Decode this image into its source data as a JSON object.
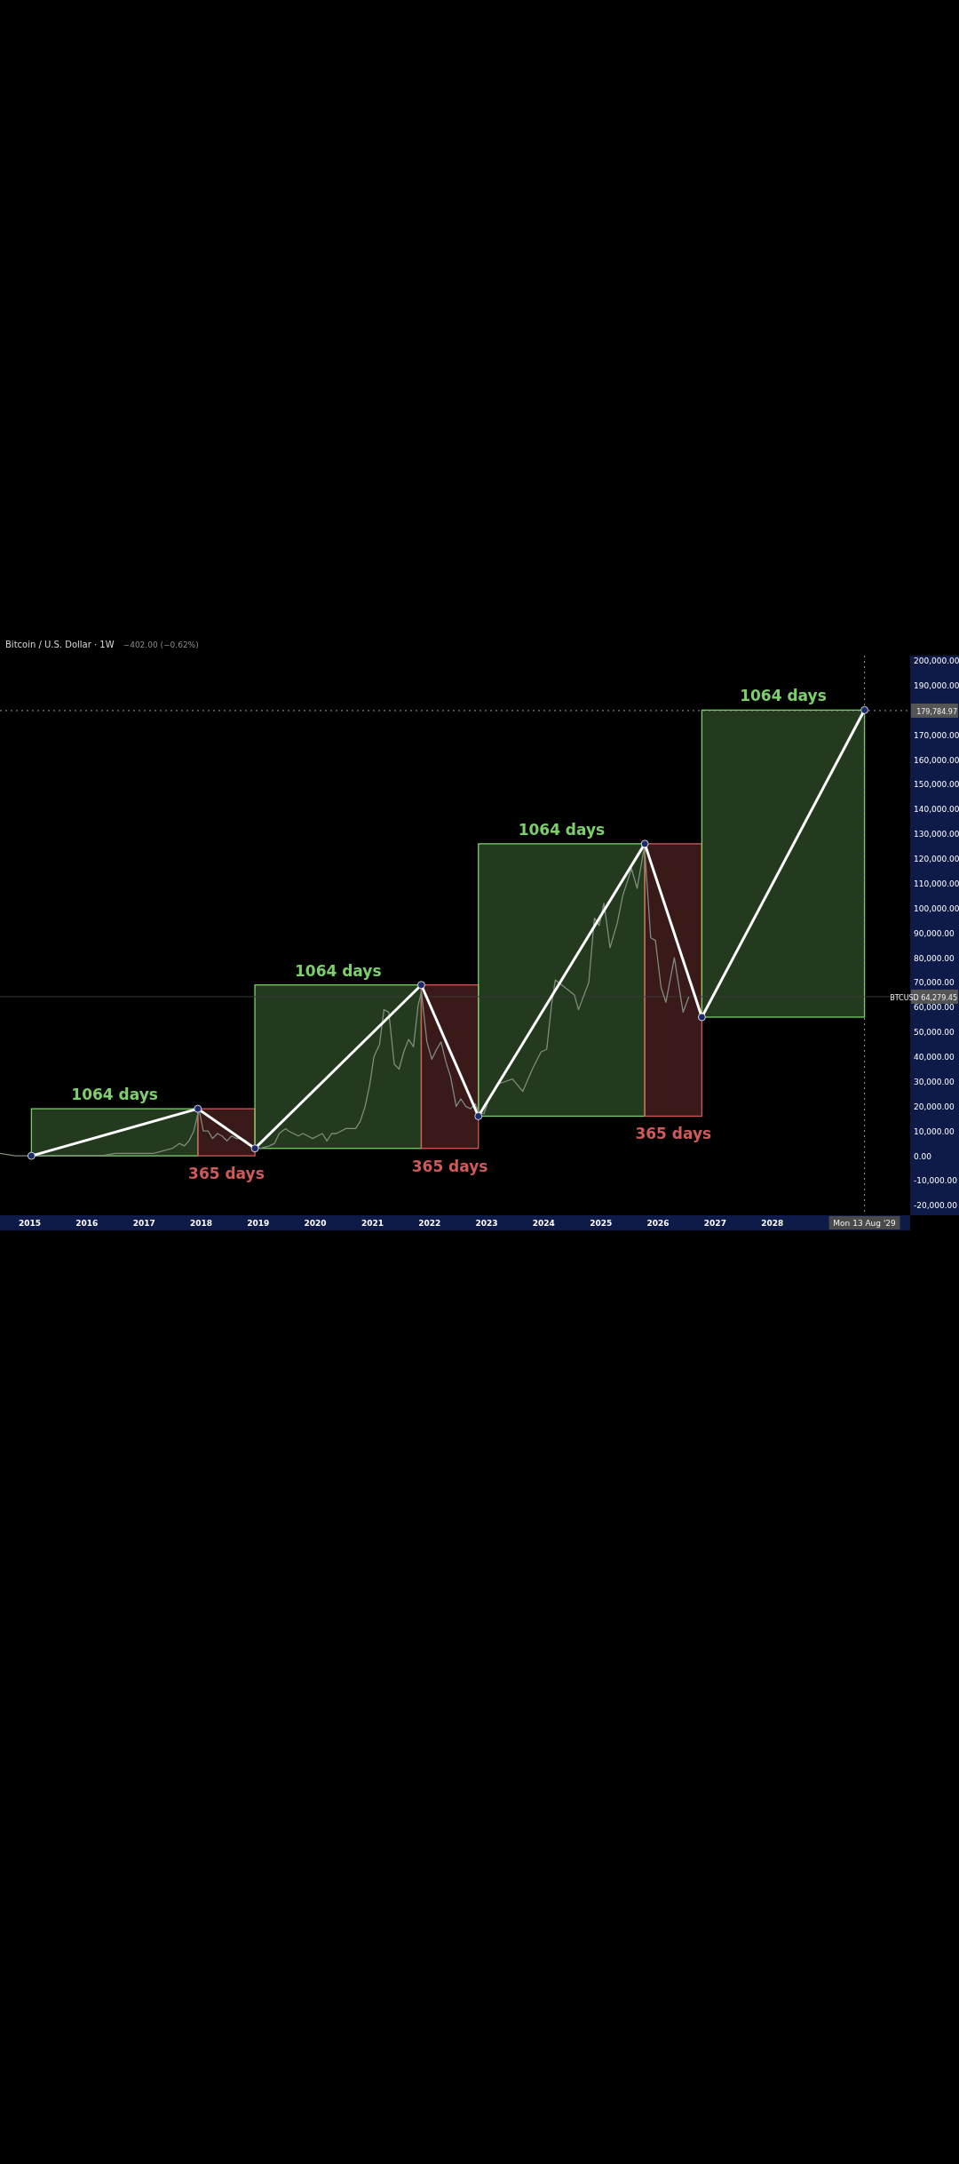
{
  "chart_data": {
    "type": "line",
    "title": "Bitcoin / U.S. Dollar · 1W",
    "subtitle": "−402.00 (−0.62%)",
    "xlim": [
      "2014-06-25",
      "2030-06-01"
    ],
    "xticks": [
      {
        "value": "2015-01-01",
        "label": "2015"
      },
      {
        "value": "2016-01-01",
        "label": "2016"
      },
      {
        "value": "2017-01-01",
        "label": "2017"
      },
      {
        "value": "2018-01-01",
        "label": "2018"
      },
      {
        "value": "2019-01-01",
        "label": "2019"
      },
      {
        "value": "2020-01-01",
        "label": "2020"
      },
      {
        "value": "2021-01-01",
        "label": "2021"
      },
      {
        "value": "2022-01-01",
        "label": "2022"
      },
      {
        "value": "2023-01-01",
        "label": "2023"
      },
      {
        "value": "2024-01-01",
        "label": "2024"
      },
      {
        "value": "2025-01-01",
        "label": "2025"
      },
      {
        "value": "2026-01-01",
        "label": "2026"
      },
      {
        "value": "2027-01-01",
        "label": "2027"
      },
      {
        "value": "2028-01-01",
        "label": "2028"
      }
    ],
    "ylim": [
      -24000,
      202000
    ],
    "yticks": [
      {
        "value": -20000,
        "label": "-20,000.00"
      },
      {
        "value": -10000,
        "label": "-10,000.00"
      },
      {
        "value": 0,
        "label": "0.00"
      },
      {
        "value": 10000,
        "label": "10,000.00"
      },
      {
        "value": 20000,
        "label": "20,000.00"
      },
      {
        "value": 30000,
        "label": "30,000.00"
      },
      {
        "value": 40000,
        "label": "40,000.00"
      },
      {
        "value": 50000,
        "label": "50,000.00"
      },
      {
        "value": 60000,
        "label": "60,000.00"
      },
      {
        "value": 70000,
        "label": "70,000.00"
      },
      {
        "value": 80000,
        "label": "80,000.00"
      },
      {
        "value": 90000,
        "label": "90,000.00"
      },
      {
        "value": 100000,
        "label": "100,000.00"
      },
      {
        "value": 110000,
        "label": "110,000.00"
      },
      {
        "value": 120000,
        "label": "120,000.00"
      },
      {
        "value": 130000,
        "label": "130,000.00"
      },
      {
        "value": 140000,
        "label": "140,000.00"
      },
      {
        "value": 150000,
        "label": "150,000.00"
      },
      {
        "value": 160000,
        "label": "160,000.00"
      },
      {
        "value": 170000,
        "label": "170,000.00"
      },
      {
        "value": 190000,
        "label": "190,000.00"
      },
      {
        "value": 200000,
        "label": "200,000.00"
      }
    ],
    "series": [
      {
        "color": "#7f8c7c",
        "marker": "none",
        "x": [
          "2014-06-25",
          "2014-10-01",
          "2015-01-12",
          "2015-04-01",
          "2015-07-01",
          "2015-10-01",
          "2016-01-01",
          "2016-04-01",
          "2016-07-01",
          "2016-10-01",
          "2017-01-01",
          "2017-03-01",
          "2017-05-01",
          "2017-07-01",
          "2017-08-15",
          "2017-09-15",
          "2017-10-15",
          "2017-11-15",
          "2017-12-04",
          "2017-12-18",
          "2018-01-15",
          "2018-02-15",
          "2018-03-15",
          "2018-04-15",
          "2018-05-15",
          "2018-06-15",
          "2018-07-15",
          "2018-08-15",
          "2018-09-15",
          "2018-10-15",
          "2018-11-20",
          "2018-12-15",
          "2019-01-15",
          "2019-03-15",
          "2019-04-15",
          "2019-05-15",
          "2019-06-25",
          "2019-07-15",
          "2019-09-15",
          "2019-10-15",
          "2019-12-15",
          "2020-02-15",
          "2020-03-15",
          "2020-04-15",
          "2020-05-15",
          "2020-07-15",
          "2020-09-15",
          "2020-10-15",
          "2020-11-15",
          "2020-12-15",
          "2021-01-10",
          "2021-02-15",
          "2021-03-15",
          "2021-04-15",
          "2021-05-20",
          "2021-06-20",
          "2021-07-20",
          "2021-08-20",
          "2021-09-20",
          "2021-10-20",
          "2021-11-10",
          "2021-12-15",
          "2022-01-15",
          "2022-02-15",
          "2022-03-15",
          "2022-04-15",
          "2022-05-15",
          "2022-06-20",
          "2022-07-20",
          "2022-08-20",
          "2022-09-20",
          "2022-10-20",
          "2022-11-15",
          "2022-12-15",
          "2023-01-15",
          "2023-03-15",
          "2023-06-15",
          "2023-08-20",
          "2023-10-20",
          "2023-12-15",
          "2024-01-20",
          "2024-02-20",
          "2024-03-15",
          "2024-05-15",
          "2024-07-15",
          "2024-08-10",
          "2024-10-15",
          "2024-11-20",
          "2024-12-20",
          "2025-01-20",
          "2025-02-28",
          "2025-04-15",
          "2025-05-20",
          "2025-07-15",
          "2025-08-20",
          "2025-10-06",
          "2025-11-15",
          "2025-12-15",
          "2026-01-20",
          "2026-02-20",
          "2026-04-15",
          "2026-06-10",
          "2026-07-15"
        ],
        "values": [
          1000,
          0,
          0,
          0,
          0,
          0,
          0,
          0,
          1000,
          1000,
          1000,
          1000,
          2000,
          3000,
          5000,
          4000,
          6000,
          10000,
          15000,
          19000,
          10000,
          10000,
          7000,
          9000,
          8000,
          6000,
          8000,
          7000,
          7000,
          6000,
          4000,
          4000,
          3000,
          4000,
          5000,
          9000,
          11000,
          10000,
          8000,
          9000,
          7000,
          9000,
          6000,
          9000,
          9000,
          11000,
          11000,
          14000,
          20000,
          29000,
          40000,
          45000,
          59000,
          58000,
          37000,
          35000,
          42000,
          47000,
          44000,
          61000,
          66000,
          46000,
          39000,
          43000,
          46000,
          38000,
          32000,
          20000,
          23000,
          20000,
          19000,
          21000,
          17000,
          17000,
          23000,
          29000,
          31000,
          26000,
          35000,
          42000,
          43000,
          61000,
          71000,
          68000,
          65000,
          59000,
          70000,
          96000,
          93000,
          102000,
          84000,
          94000,
          105000,
          116000,
          108000,
          125000,
          88000,
          87000,
          68000,
          62000,
          80000,
          58000,
          64000
        ]
      },
      {
        "color": "#ffffff",
        "marker": "circle",
        "x": [
          "2015-01-12",
          "2017-12-11",
          "2018-12-11",
          "2021-11-09",
          "2022-11-09",
          "2025-10-08",
          "2026-10-08",
          "2029-08-13"
        ],
        "values": [
          0,
          19000,
          3000,
          69000,
          16000,
          126000,
          56000,
          180000
        ]
      }
    ],
    "bands": [
      {
        "axis": "x",
        "from": "2015-01-12",
        "to": "2017-12-11",
        "label": "1064 days",
        "color": "#7ccf6a"
      },
      {
        "axis": "x",
        "from": "2017-12-11",
        "to": "2018-12-11",
        "label": "365 days",
        "color": "#d05a5a"
      },
      {
        "axis": "x",
        "from": "2018-12-11",
        "to": "2021-11-09",
        "label": "1064 days",
        "color": "#7ccf6a"
      },
      {
        "axis": "x",
        "from": "2021-11-09",
        "to": "2022-11-09",
        "label": "365 days",
        "color": "#d05a5a"
      },
      {
        "axis": "x",
        "from": "2022-11-09",
        "to": "2025-10-08",
        "label": "1064 days",
        "color": "#7ccf6a"
      },
      {
        "axis": "x",
        "from": "2025-10-08",
        "to": "2026-10-08",
        "label": "365 days",
        "color": "#d05a5a"
      },
      {
        "axis": "x",
        "from": "2026-10-08",
        "to": "2029-08-13",
        "label": "1064 days",
        "color": "#7ccf6a"
      }
    ],
    "ref_lines": [
      {
        "axis": "y",
        "value": 179784.97,
        "label": "179,784.97",
        "line_style": "dotted",
        "color": "#9a9a9a"
      },
      {
        "axis": "y",
        "value": 64279.45,
        "label": "BTCUSD 64,279.45",
        "line_style": "solid",
        "color": "#3a3a3a"
      },
      {
        "axis": "x",
        "value": "2029-08-13",
        "label": "Mon 13 Aug '29",
        "line_style": "dotted",
        "color": "#9a9a9a"
      }
    ]
  }
}
